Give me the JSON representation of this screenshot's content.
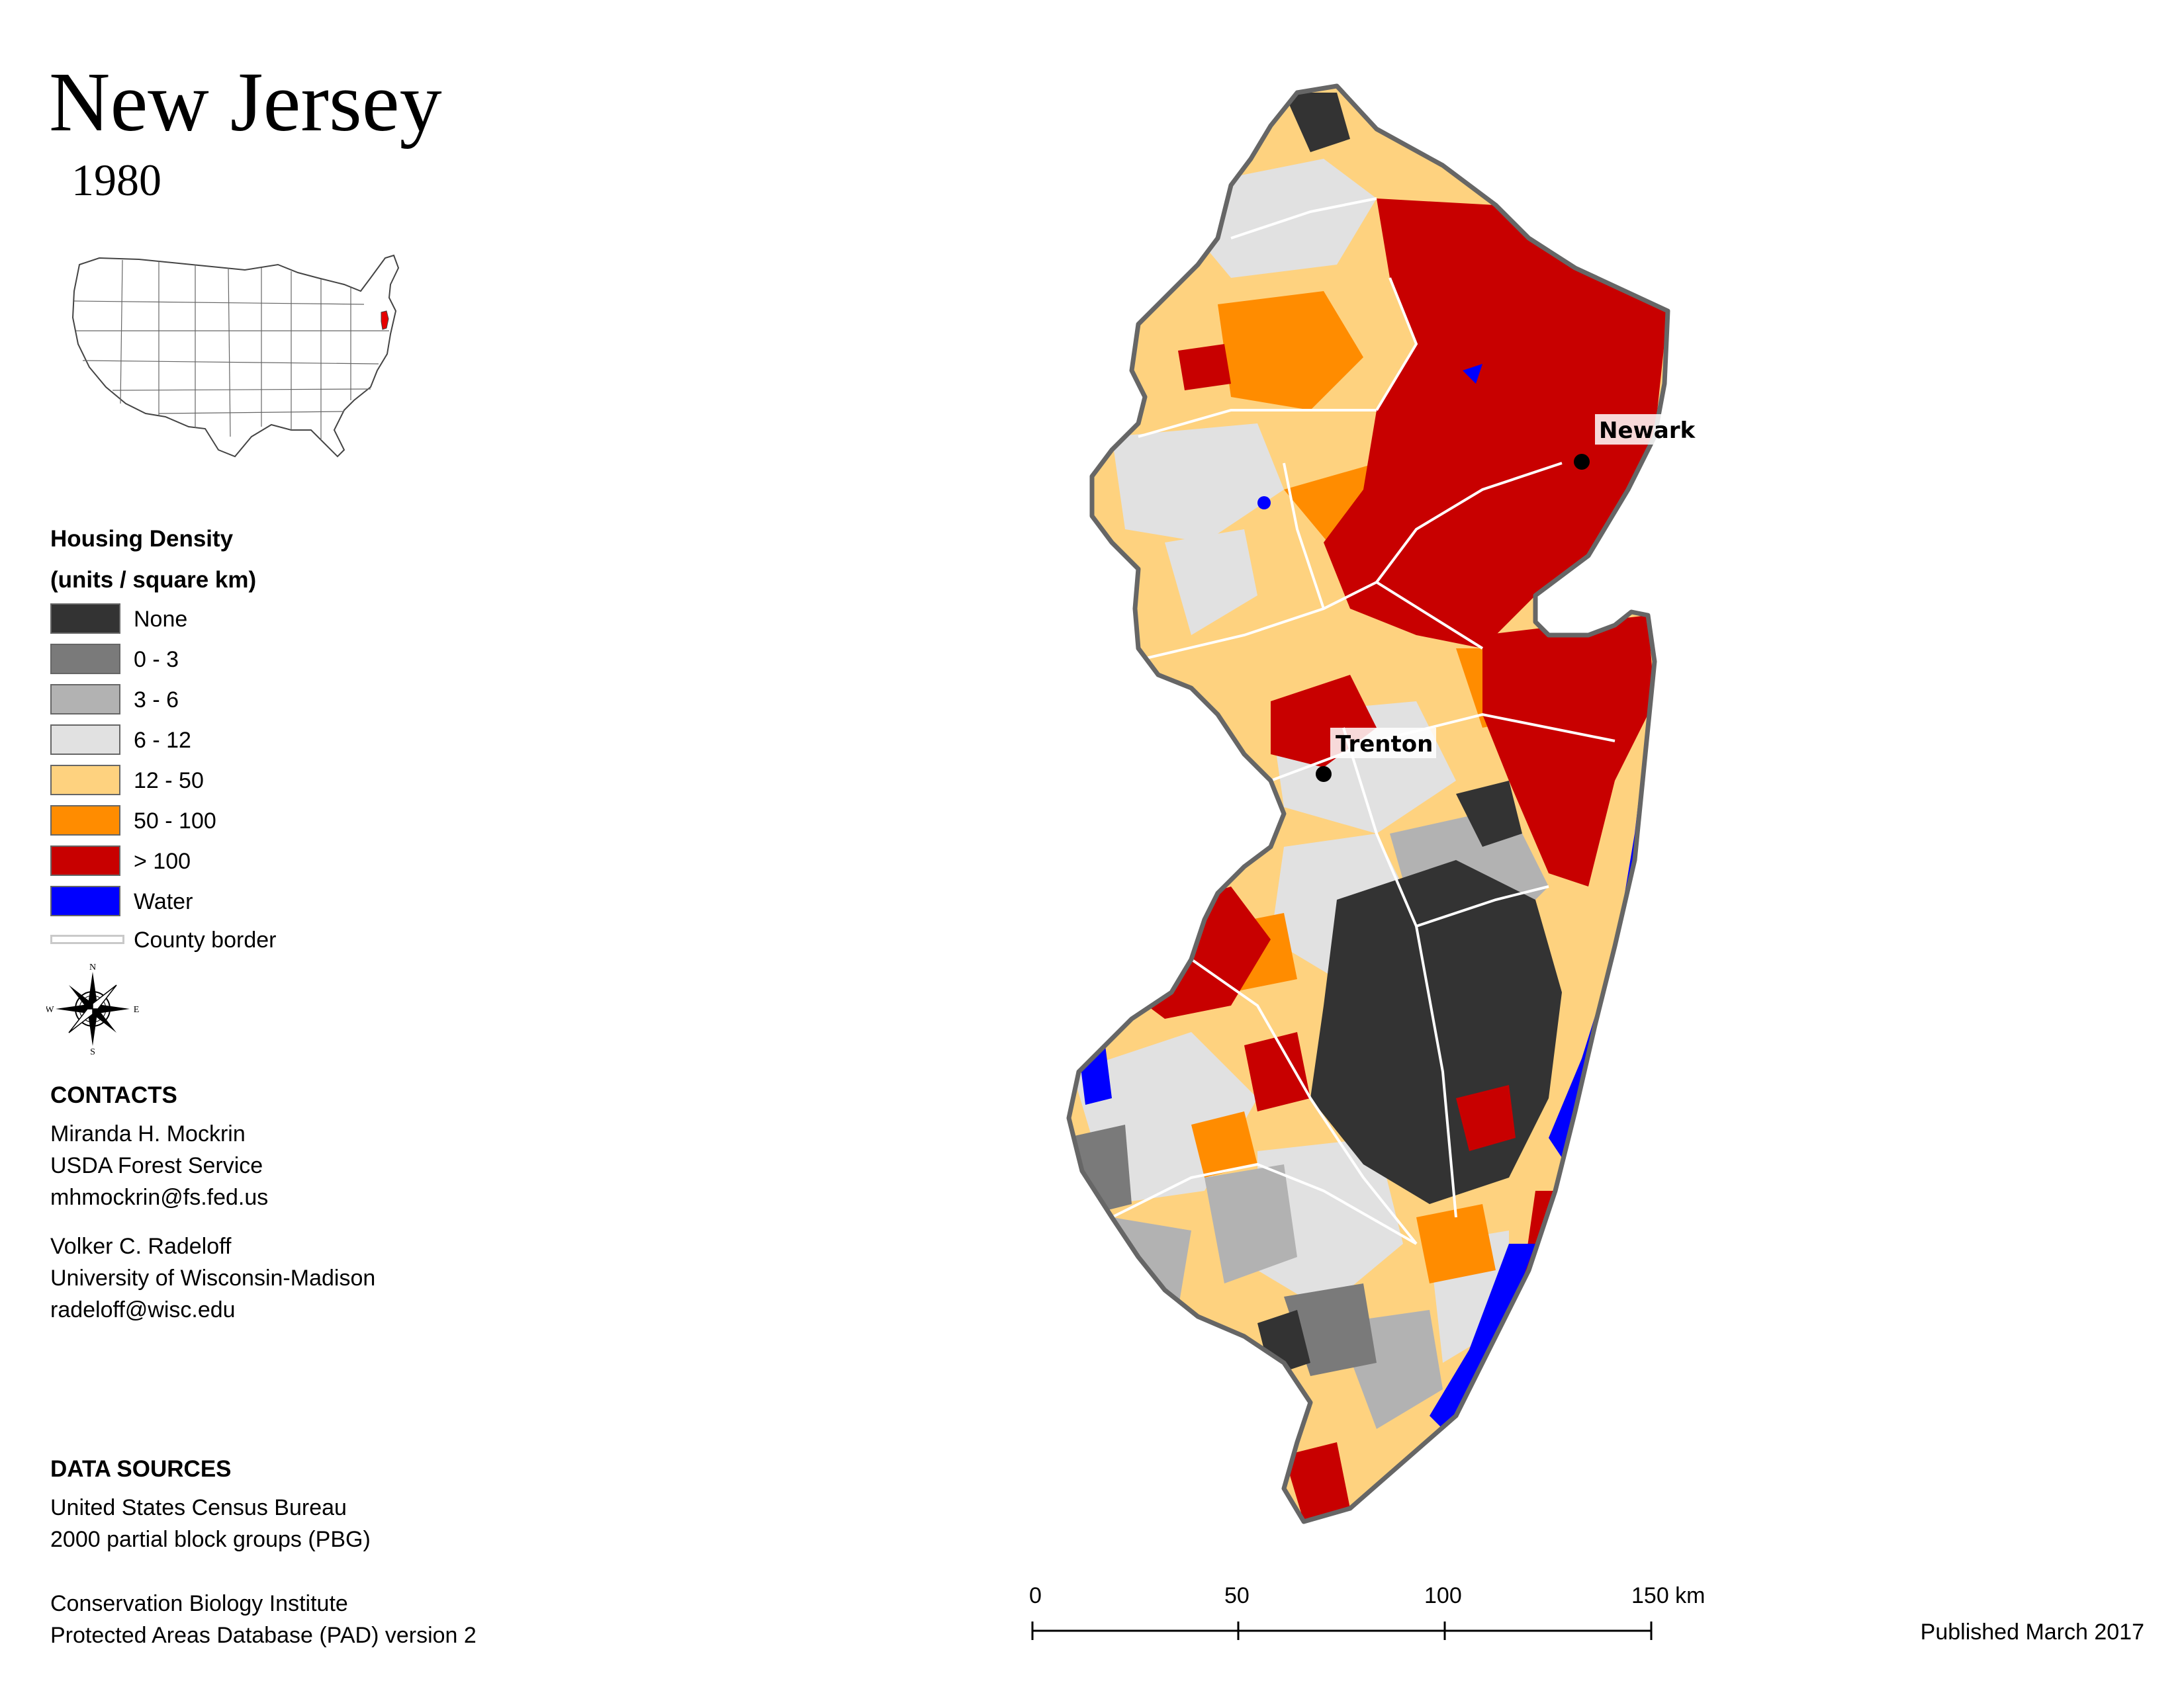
{
  "title": "New Jersey",
  "year": "1980",
  "legend": {
    "title_line1": "Housing Density",
    "title_line2": "(units / square km)",
    "items": [
      {
        "label": "None",
        "color": "#333333"
      },
      {
        "label": "0 - 3",
        "color": "#7a7a7a"
      },
      {
        "label": "3 - 6",
        "color": "#b2b2b2"
      },
      {
        "label": "6 - 12",
        "color": "#e1e1e1"
      },
      {
        "label": "12 - 50",
        "color": "#fed27f"
      },
      {
        "label": "50 - 100",
        "color": "#ff8c00"
      },
      {
        "label": "> 100",
        "color": "#c80000"
      },
      {
        "label": "Water",
        "color": "#0000ff"
      }
    ],
    "county_border_label": "County border"
  },
  "compass": {
    "n": "N",
    "s": "S",
    "e": "E",
    "w": "W"
  },
  "contacts": {
    "heading": "CONTACTS",
    "person1": [
      "Miranda H. Mockrin",
      "USDA Forest Service",
      "mhmockrin@fs.fed.us"
    ],
    "person2": [
      "Volker C. Radeloff",
      "University of Wisconsin-Madison",
      "radeloff@wisc.edu"
    ]
  },
  "data_sources": {
    "heading": "DATA SOURCES",
    "source1": [
      "United States Census Bureau",
      "2000 partial block groups (PBG)"
    ],
    "source2": [
      "Conservation Biology Institute",
      "Protected Areas Database (PAD) version 2"
    ]
  },
  "cities": [
    {
      "name": "Newark"
    },
    {
      "name": "Trenton"
    }
  ],
  "scale_bar": {
    "labels": [
      "0",
      "50",
      "100",
      "150 km"
    ]
  },
  "published": "Published March 2017"
}
